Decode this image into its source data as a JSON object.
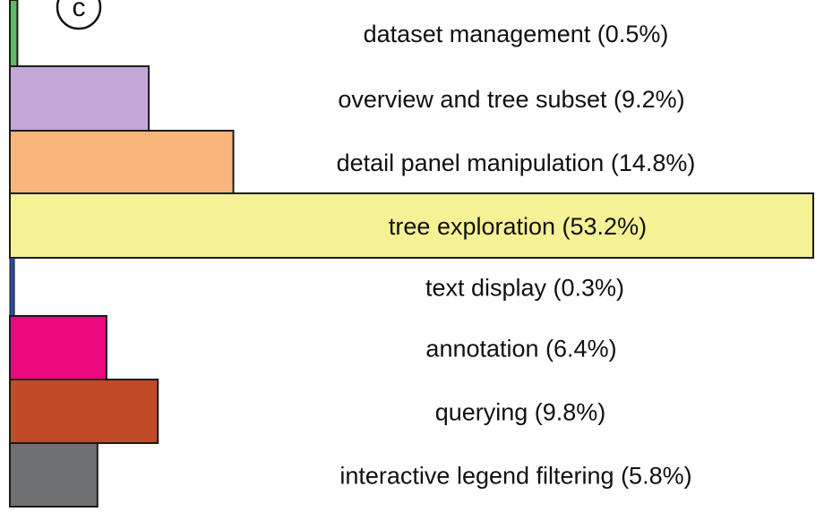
{
  "panel_label": "c",
  "chart_data": {
    "type": "bar",
    "orientation": "horizontal",
    "categories": [
      "dataset management",
      "overview and tree subset",
      "detail panel manipulation",
      "tree exploration",
      "text display",
      "annotation",
      "querying",
      "interactive legend filtering"
    ],
    "values": [
      0.5,
      9.2,
      14.8,
      53.2,
      0.3,
      6.4,
      9.8,
      5.8
    ],
    "labels": [
      "dataset management (0.5%)",
      "overview and tree subset (9.2%)",
      "detail panel manipulation (14.8%)",
      "tree exploration (53.2%)",
      "text display (0.3%)",
      "annotation (6.4%)",
      "querying (9.8%)",
      "interactive legend filtering (5.8%)"
    ],
    "colors": [
      "#5dbb63",
      "#c3a7d6",
      "#f8b57c",
      "#f5f195",
      "#2a4d9b",
      "#ea0a7e",
      "#c24a28",
      "#6f7071"
    ],
    "unit": "%",
    "xlim": [
      0,
      53.2
    ],
    "axes": false,
    "grid": false,
    "legend": "none"
  }
}
